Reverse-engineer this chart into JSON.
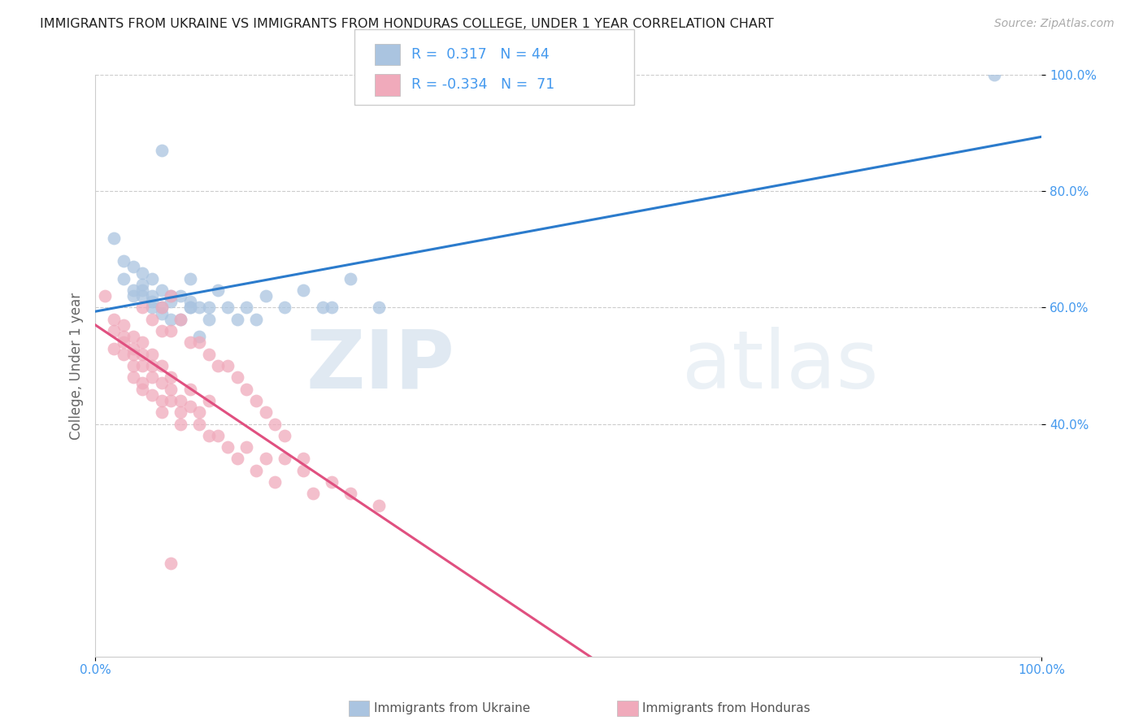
{
  "title": "IMMIGRANTS FROM UKRAINE VS IMMIGRANTS FROM HONDURAS COLLEGE, UNDER 1 YEAR CORRELATION CHART",
  "source": "Source: ZipAtlas.com",
  "ylabel": "College, Under 1 year",
  "xlim": [
    0.0,
    1.0
  ],
  "ylim": [
    0.0,
    1.0
  ],
  "xtick_positions": [
    0.0,
    1.0
  ],
  "xtick_labels": [
    "0.0%",
    "100.0%"
  ],
  "ytick_positions": [
    0.4,
    0.6,
    0.8,
    1.0
  ],
  "ytick_labels": [
    "40.0%",
    "60.0%",
    "80.0%",
    "100.0%"
  ],
  "legend_ukraine": "Immigrants from Ukraine",
  "legend_honduras": "Immigrants from Honduras",
  "R_ukraine": 0.317,
  "N_ukraine": 44,
  "R_honduras": -0.334,
  "N_honduras": 71,
  "color_ukraine": "#aac4e0",
  "color_honduras": "#f0aabb",
  "line_color_ukraine": "#2b7bcc",
  "line_color_honduras": "#e05080",
  "watermark_zip": "ZIP",
  "watermark_atlas": "atlas",
  "grid_color": "#cccccc",
  "tick_color": "#4499ee",
  "ylabel_color": "#666666",
  "ukraine_x": [
    0.02,
    0.03,
    0.03,
    0.04,
    0.04,
    0.05,
    0.05,
    0.05,
    0.05,
    0.06,
    0.06,
    0.06,
    0.06,
    0.07,
    0.07,
    0.07,
    0.08,
    0.08,
    0.09,
    0.09,
    0.1,
    0.1,
    0.1,
    0.11,
    0.11,
    0.12,
    0.12,
    0.13,
    0.14,
    0.15,
    0.16,
    0.17,
    0.18,
    0.2,
    0.22,
    0.24,
    0.25,
    0.27,
    0.3,
    0.07,
    0.95,
    0.08,
    0.1,
    0.04
  ],
  "ukraine_y": [
    0.72,
    0.68,
    0.65,
    0.62,
    0.63,
    0.62,
    0.63,
    0.66,
    0.64,
    0.6,
    0.62,
    0.61,
    0.65,
    0.63,
    0.6,
    0.59,
    0.62,
    0.61,
    0.58,
    0.62,
    0.6,
    0.61,
    0.65,
    0.55,
    0.6,
    0.58,
    0.6,
    0.63,
    0.6,
    0.58,
    0.6,
    0.58,
    0.62,
    0.6,
    0.63,
    0.6,
    0.6,
    0.65,
    0.6,
    0.87,
    1.0,
    0.58,
    0.6,
    0.67
  ],
  "honduras_x": [
    0.01,
    0.02,
    0.02,
    0.02,
    0.03,
    0.03,
    0.03,
    0.03,
    0.04,
    0.04,
    0.04,
    0.04,
    0.04,
    0.05,
    0.05,
    0.05,
    0.05,
    0.05,
    0.06,
    0.06,
    0.06,
    0.06,
    0.07,
    0.07,
    0.07,
    0.07,
    0.08,
    0.08,
    0.08,
    0.09,
    0.09,
    0.09,
    0.1,
    0.1,
    0.11,
    0.11,
    0.12,
    0.12,
    0.13,
    0.14,
    0.15,
    0.16,
    0.17,
    0.18,
    0.19,
    0.2,
    0.22,
    0.23,
    0.25,
    0.27,
    0.05,
    0.06,
    0.07,
    0.07,
    0.08,
    0.08,
    0.09,
    0.1,
    0.11,
    0.12,
    0.13,
    0.14,
    0.15,
    0.16,
    0.17,
    0.18,
    0.19,
    0.2,
    0.22,
    0.08,
    0.3
  ],
  "honduras_y": [
    0.62,
    0.56,
    0.58,
    0.53,
    0.55,
    0.57,
    0.52,
    0.54,
    0.52,
    0.55,
    0.5,
    0.53,
    0.48,
    0.52,
    0.54,
    0.5,
    0.46,
    0.47,
    0.5,
    0.52,
    0.48,
    0.45,
    0.47,
    0.5,
    0.44,
    0.42,
    0.46,
    0.44,
    0.48,
    0.44,
    0.4,
    0.42,
    0.43,
    0.46,
    0.4,
    0.42,
    0.38,
    0.44,
    0.38,
    0.36,
    0.34,
    0.36,
    0.32,
    0.34,
    0.3,
    0.34,
    0.32,
    0.28,
    0.3,
    0.28,
    0.6,
    0.58,
    0.6,
    0.56,
    0.56,
    0.62,
    0.58,
    0.54,
    0.54,
    0.52,
    0.5,
    0.5,
    0.48,
    0.46,
    0.44,
    0.42,
    0.4,
    0.38,
    0.34,
    0.16,
    0.26
  ]
}
